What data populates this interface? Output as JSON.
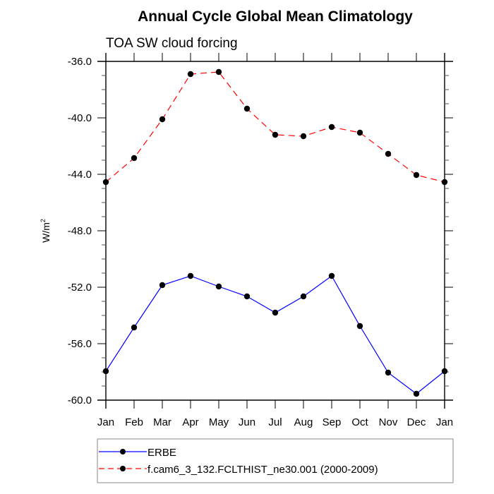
{
  "chart_data": {
    "type": "line",
    "title": "Annual Cycle Global Mean Climatology",
    "subtitle": "TOA SW cloud forcing",
    "xlabel": "",
    "ylabel": "W/m",
    "ylabel_superscript": "2",
    "categories": [
      "Jan",
      "Feb",
      "Mar",
      "Apr",
      "May",
      "Jun",
      "Jul",
      "Aug",
      "Sep",
      "Oct",
      "Nov",
      "Dec",
      "Jan"
    ],
    "ylim": [
      -60.0,
      -36.0
    ],
    "yticks_major": [
      -36.0,
      -40.0,
      -44.0,
      -48.0,
      -52.0,
      -56.0,
      -60.0
    ],
    "ytick_labels": [
      "-36.0",
      "-40.0",
      "-44.0",
      "-48.0",
      "-52.0",
      "-56.0",
      "-60.0"
    ],
    "yminor_step": 1.0,
    "grid": false,
    "legend_position": "bottom",
    "series": [
      {
        "name": "ERBE",
        "color": "#0000ff",
        "dash": "solid",
        "marker": "filled-circle",
        "values": [
          -57.95,
          -54.85,
          -51.85,
          -51.2,
          -51.95,
          -52.65,
          -53.8,
          -52.65,
          -51.2,
          -54.75,
          -58.05,
          -59.55,
          -57.95
        ]
      },
      {
        "name": "f.cam6_3_132.FCLTHIST_ne30.001 (2000-2009)",
        "color": "#ff0000",
        "dash": "dashed",
        "marker": "filled-circle",
        "values": [
          -44.55,
          -42.85,
          -40.1,
          -36.9,
          -36.75,
          -39.35,
          -41.2,
          -41.3,
          -40.65,
          -41.05,
          -42.55,
          -44.05,
          -44.55
        ]
      }
    ]
  }
}
